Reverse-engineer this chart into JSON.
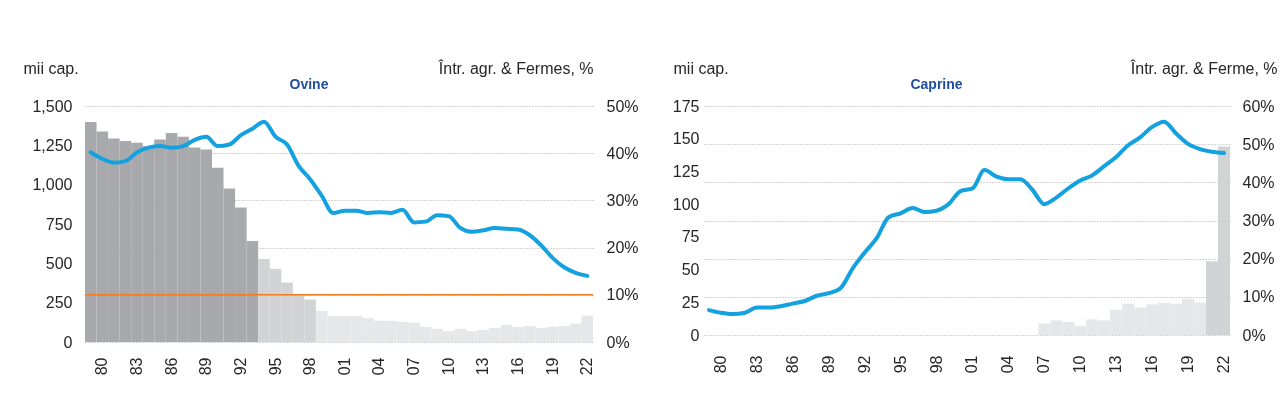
{
  "chart_data": [
    {
      "type": "bar",
      "title": "Ovine",
      "ylabel": "mii cap.",
      "y2label": "Într. agr. & Fermes, %",
      "categories": [
        null,
        "80",
        null,
        null,
        "83",
        null,
        null,
        "86",
        null,
        null,
        "89",
        null,
        null,
        "92",
        null,
        null,
        "95",
        null,
        null,
        "98",
        null,
        null,
        "01",
        null,
        null,
        "04",
        null,
        null,
        "07",
        null,
        null,
        "10",
        null,
        null,
        "13",
        null,
        null,
        "16",
        null,
        null,
        "19",
        null,
        null,
        "22"
      ],
      "series": [
        {
          "axis": "y2",
          "colors": [
            "#a7a9ac",
            "#a7a9ac",
            "#a7a9ac",
            "#a7a9ac",
            "#a7a9ac",
            "#a7a9ac",
            "#a7a9ac",
            "#a7a9ac",
            "#a7a9ac",
            "#a7a9ac",
            "#a7a9ac",
            "#a7a9ac",
            "#a7a9ac",
            "#a7a9ac",
            "#a7a9ac",
            "#d1d3d4",
            "#d1d3d4",
            "#d1d3d4",
            "#d1d3d4",
            "#d1d3d4",
            "#e6e7e8",
            "#e6e7e8",
            "#e6e7e8",
            "#e6e7e8",
            "#e6e7e8",
            "#e6e7e8",
            "#e6e7e8",
            "#e6e7e8",
            "#e6e7e8",
            "#e6e7e8",
            "#e6e7e8",
            "#e6e7e8",
            "#e6e7e8",
            "#e6e7e8",
            "#e6e7e8",
            "#e6e7e8",
            "#e6e7e8",
            "#e6e7e8",
            "#e6e7e8",
            "#e6e7e8",
            "#e6e7e8",
            "#e6e7e8",
            "#e6e7e8",
            "#e6e7e8"
          ],
          "values": [
            46.6,
            44.6,
            43.1,
            42.6,
            42.2,
            41.5,
            42.9,
            44.3,
            43.5,
            41.2,
            40.8,
            36.9,
            32.5,
            28.5,
            21.4,
            17.6,
            15.5,
            12.6,
            10.2,
            9.0,
            6.6,
            5.5,
            5.5,
            5.5,
            5.1,
            4.5,
            4.5,
            4.3,
            4.1,
            3.2,
            2.8,
            2.3,
            2.8,
            2.3,
            2.6,
            3.0,
            3.6,
            3.2,
            3.4,
            3.0,
            3.2,
            3.4,
            3.9,
            5.6
          ]
        },
        {
          "type": "line",
          "axis": "y",
          "color": "#13a1e0",
          "values": [
            1205,
            1165,
            1140,
            1150,
            1205,
            1235,
            1245,
            1235,
            1245,
            1285,
            1305,
            1245,
            1255,
            1315,
            1355,
            1400,
            1305,
            1255,
            1120,
            1035,
            930,
            820,
            835,
            835,
            820,
            825,
            820,
            840,
            760,
            765,
            805,
            800,
            725,
            700,
            710,
            725,
            720,
            715,
            680,
            615,
            535,
            475,
            440,
            420
          ]
        }
      ],
      "ylim": [
        0,
        1500
      ],
      "yticks": [
        0,
        250,
        500,
        750,
        {
          "value": 1000,
          "label": "1,000"
        },
        {
          "value": 1250,
          "label": "1,250"
        },
        {
          "value": 1500,
          "label": "1,500"
        }
      ],
      "y2lim": [
        0,
        50
      ],
      "y2ticks": [
        {
          "value": 0,
          "label": "0%"
        },
        {
          "value": 10,
          "label": "10%"
        },
        {
          "value": 20,
          "label": "20%"
        },
        {
          "value": 30,
          "label": "30%"
        },
        {
          "value": 40,
          "label": "40%"
        },
        {
          "value": 50,
          "label": "50%"
        }
      ],
      "ref_lines": [
        {
          "axis": "y2",
          "value": 10,
          "color": "#f47b20"
        }
      ],
      "grid": "y2"
    },
    {
      "type": "bar",
      "title": "Caprine",
      "ylabel": "mii cap.",
      "y2label": "Într. agr. & Ferme, %",
      "categories": [
        null,
        "80",
        null,
        null,
        "83",
        null,
        null,
        "86",
        null,
        null,
        "89",
        null,
        null,
        "92",
        null,
        null,
        "95",
        null,
        null,
        "98",
        null,
        null,
        "01",
        null,
        null,
        "04",
        null,
        null,
        "07",
        null,
        null,
        "10",
        null,
        null,
        "13",
        null,
        null,
        "16",
        null,
        null,
        "19",
        null,
        null,
        "22"
      ],
      "series": [
        {
          "axis": "y2",
          "colors": [
            null,
            null,
            null,
            null,
            null,
            null,
            null,
            null,
            null,
            null,
            null,
            null,
            null,
            null,
            null,
            null,
            null,
            null,
            null,
            null,
            null,
            null,
            null,
            null,
            null,
            null,
            null,
            null,
            "#e6e7e8",
            "#e6e7e8",
            "#e6e7e8",
            "#e6e7e8",
            "#e6e7e8",
            "#e6e7e8",
            "#e6e7e8",
            "#e6e7e8",
            "#e6e7e8",
            "#e6e7e8",
            "#e6e7e8",
            "#e6e7e8",
            "#e6e7e8",
            "#e6e7e8",
            "#d1d3d4",
            "#d1d3d4"
          ],
          "values": [
            null,
            null,
            null,
            null,
            null,
            null,
            null,
            null,
            null,
            null,
            null,
            null,
            null,
            null,
            null,
            null,
            null,
            null,
            null,
            null,
            null,
            null,
            null,
            null,
            null,
            null,
            null,
            null,
            3.0,
            3.8,
            3.4,
            2.4,
            4.1,
            3.8,
            6.6,
            8.2,
            7.2,
            8.0,
            8.4,
            8.2,
            9.5,
            8.5,
            19.3,
            49.4
          ]
        },
        {
          "type": "line",
          "axis": "y",
          "color": "#13a1e0",
          "values": [
            19,
            17,
            16,
            17,
            21,
            21,
            22,
            24,
            26,
            30,
            32,
            36,
            51,
            63,
            74,
            90,
            93,
            97,
            94,
            95,
            100,
            110,
            112,
            126,
            121,
            119,
            119,
            111,
            100,
            105,
            112,
            118,
            122,
            129,
            136,
            145,
            151,
            159,
            163,
            154,
            146,
            142,
            140,
            139
          ]
        }
      ],
      "ylim": [
        0,
        175
      ],
      "yticks": [
        0,
        25,
        50,
        75,
        100,
        125,
        150,
        175
      ],
      "y2lim": [
        0,
        60
      ],
      "y2ticks": [
        {
          "value": 0,
          "label": "0%"
        },
        {
          "value": 10,
          "label": "10%"
        },
        {
          "value": 20,
          "label": "20%"
        },
        {
          "value": 30,
          "label": "30%"
        },
        {
          "value": 40,
          "label": "40%"
        },
        {
          "value": 50,
          "label": "50%"
        },
        {
          "value": 60,
          "label": "60%"
        }
      ],
      "grid": "y2"
    }
  ]
}
